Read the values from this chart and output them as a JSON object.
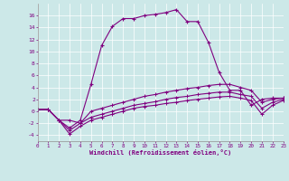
{
  "xlabel": "Windchill (Refroidissement éolien,°C)",
  "background_color": "#cce8e8",
  "line_color": "#800080",
  "xlim": [
    0,
    23
  ],
  "ylim": [
    -5,
    18
  ],
  "xticks": [
    0,
    1,
    2,
    3,
    4,
    5,
    6,
    7,
    8,
    9,
    10,
    11,
    12,
    13,
    14,
    15,
    16,
    17,
    18,
    19,
    20,
    21,
    22,
    23
  ],
  "yticks": [
    -4,
    -2,
    0,
    2,
    4,
    6,
    8,
    10,
    12,
    14,
    16
  ],
  "line1_x": [
    0,
    1,
    2,
    3,
    4,
    5,
    6,
    7,
    8,
    9,
    10,
    11,
    12,
    13,
    14,
    15,
    16,
    17,
    18,
    19,
    20,
    21,
    22,
    23
  ],
  "line1_y": [
    0.3,
    0.3,
    -1.5,
    -2.8,
    -1.5,
    4.5,
    11.0,
    14.2,
    15.5,
    15.5,
    16.0,
    16.2,
    16.5,
    17.0,
    15.0,
    15.0,
    11.5,
    6.5,
    3.5,
    3.5,
    1.0,
    2.0,
    2.2,
    2.2
  ],
  "line1_markers": [
    0,
    1,
    2,
    3,
    4,
    5,
    6,
    7,
    8,
    9,
    10,
    11,
    12,
    13,
    14,
    15,
    16,
    17,
    18,
    19,
    20,
    21,
    22,
    23
  ],
  "line2_x": [
    0,
    1,
    2,
    3,
    4,
    5,
    6,
    7,
    8,
    9,
    10,
    11,
    12,
    13,
    14,
    15,
    16,
    17,
    18,
    19,
    20,
    21,
    22,
    23
  ],
  "line2_y": [
    0.3,
    0.3,
    -1.5,
    -1.5,
    -2.0,
    0.0,
    0.5,
    1.0,
    1.5,
    2.0,
    2.5,
    2.8,
    3.2,
    3.5,
    3.8,
    4.0,
    4.3,
    4.5,
    4.5,
    4.0,
    3.5,
    1.5,
    2.0,
    2.2
  ],
  "line3_x": [
    0,
    1,
    2,
    3,
    4,
    5,
    6,
    7,
    8,
    9,
    10,
    11,
    12,
    13,
    14,
    15,
    16,
    17,
    18,
    19,
    20,
    21,
    22,
    23
  ],
  "line3_y": [
    0.3,
    0.3,
    -1.5,
    -3.2,
    -2.0,
    -1.0,
    -0.5,
    0.0,
    0.5,
    1.0,
    1.3,
    1.6,
    2.0,
    2.3,
    2.5,
    2.8,
    3.0,
    3.2,
    3.2,
    2.8,
    2.5,
    0.5,
    1.5,
    2.0
  ],
  "line4_x": [
    0,
    1,
    2,
    3,
    4,
    5,
    6,
    7,
    8,
    9,
    10,
    11,
    12,
    13,
    14,
    15,
    16,
    17,
    18,
    19,
    20,
    21,
    22,
    23
  ],
  "line4_y": [
    0.3,
    0.3,
    -1.5,
    -3.8,
    -2.5,
    -1.5,
    -1.0,
    -0.5,
    0.0,
    0.5,
    0.8,
    1.0,
    1.3,
    1.5,
    1.8,
    2.0,
    2.2,
    2.4,
    2.5,
    2.2,
    1.8,
    -0.5,
    1.0,
    1.8
  ]
}
